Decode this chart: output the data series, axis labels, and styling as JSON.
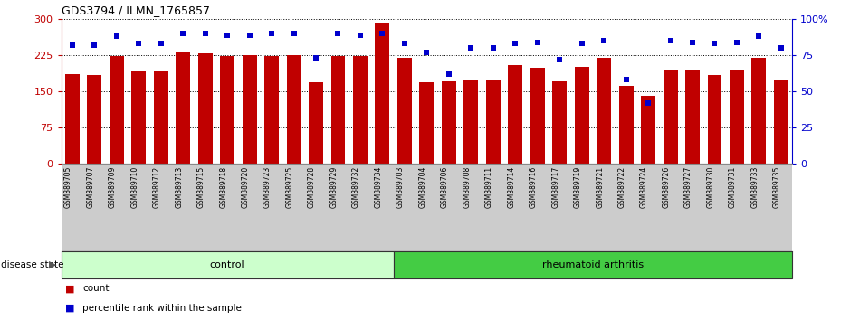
{
  "title": "GDS3794 / ILMN_1765857",
  "samples": [
    "GSM389705",
    "GSM389707",
    "GSM389709",
    "GSM389710",
    "GSM389712",
    "GSM389713",
    "GSM389715",
    "GSM389718",
    "GSM389720",
    "GSM389723",
    "GSM389725",
    "GSM389728",
    "GSM389729",
    "GSM389732",
    "GSM389734",
    "GSM389703",
    "GSM389704",
    "GSM389706",
    "GSM389708",
    "GSM389711",
    "GSM389714",
    "GSM389716",
    "GSM389717",
    "GSM389719",
    "GSM389721",
    "GSM389722",
    "GSM389724",
    "GSM389726",
    "GSM389727",
    "GSM389730",
    "GSM389731",
    "GSM389733",
    "GSM389735"
  ],
  "counts": [
    185,
    183,
    224,
    192,
    193,
    233,
    228,
    224,
    226,
    224,
    226,
    168,
    224,
    224,
    293,
    220,
    168,
    170,
    175,
    175,
    205,
    198,
    170,
    200,
    220,
    162,
    140,
    195,
    195,
    183,
    195,
    220,
    175
  ],
  "percentile_ranks": [
    82,
    82,
    88,
    83,
    83,
    90,
    90,
    89,
    89,
    90,
    90,
    73,
    90,
    89,
    90,
    83,
    77,
    62,
    80,
    80,
    83,
    84,
    72,
    83,
    85,
    58,
    42,
    85,
    84,
    83,
    84,
    88,
    80
  ],
  "n_control": 15,
  "n_ra": 18,
  "ylim_left": [
    0,
    300
  ],
  "ylim_right": [
    0,
    100
  ],
  "yticks_left": [
    0,
    75,
    150,
    225,
    300
  ],
  "yticks_right": [
    0,
    25,
    50,
    75,
    100
  ],
  "yticklabels_right": [
    "0",
    "25",
    "50",
    "75",
    "100%"
  ],
  "bar_color": "#C00000",
  "dot_color": "#0000CC",
  "control_color": "#CCFFCC",
  "ra_color": "#44CC44",
  "bg_color": "#FFFFFF",
  "xtick_bg_color": "#CCCCCC",
  "grid_color": "#000000"
}
